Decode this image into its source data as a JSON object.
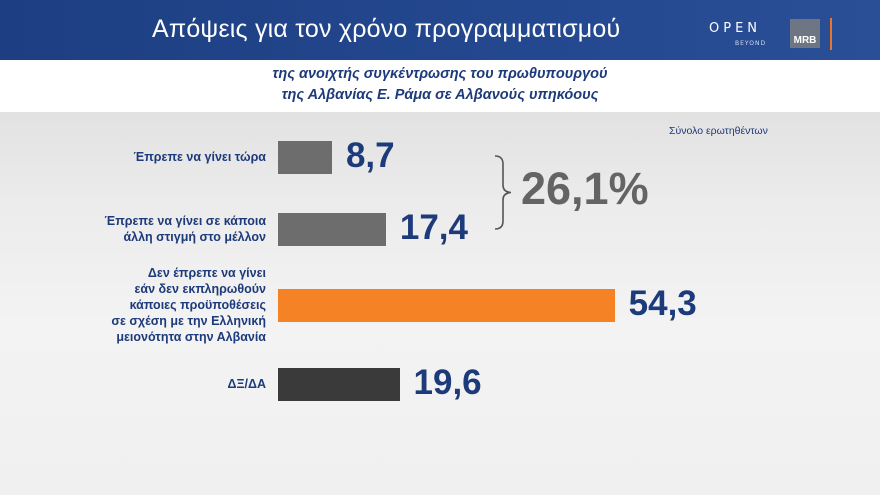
{
  "header": {
    "title": "Απόψεις για  τον χρόνο προγραμματισμού",
    "logo_open": "OPEN",
    "logo_beyond": "BEYOND",
    "logo_mrb": "MRB"
  },
  "subtitle": {
    "line1": "της ανοιχτής συγκέντρωσης του πρωθυπουργού",
    "line2": "της Αλβανίας Ε. Ράμα σε Αλβανούς υπηκόους"
  },
  "note": "Σύνολο ερωτηθέντων",
  "chart_data": {
    "type": "bar",
    "orientation": "horizontal",
    "categories": [
      "Έπρεπε να γίνει τώρα",
      "Έπρεπε να γίνει σε κάποια\nάλλη στιγμή στο μέλλον",
      "Δεν έπρεπε να γίνει\nεάν δεν εκπληρωθούν\nκάποιες προϋποθέσεις\nσε σχέση με την Ελληνική\nμειονότητα στην Αλβανία",
      "ΔΞ/ΔΑ"
    ],
    "values": [
      8.7,
      17.4,
      54.3,
      19.6
    ],
    "value_labels": [
      "8,7",
      "17,4",
      "54,3",
      "19,6"
    ],
    "colors": [
      "#6d6d6d",
      "#6d6d6d",
      "#f68226",
      "#3a3a3a"
    ],
    "group_total": {
      "label": "26,1%",
      "covers": [
        0,
        1
      ]
    }
  }
}
